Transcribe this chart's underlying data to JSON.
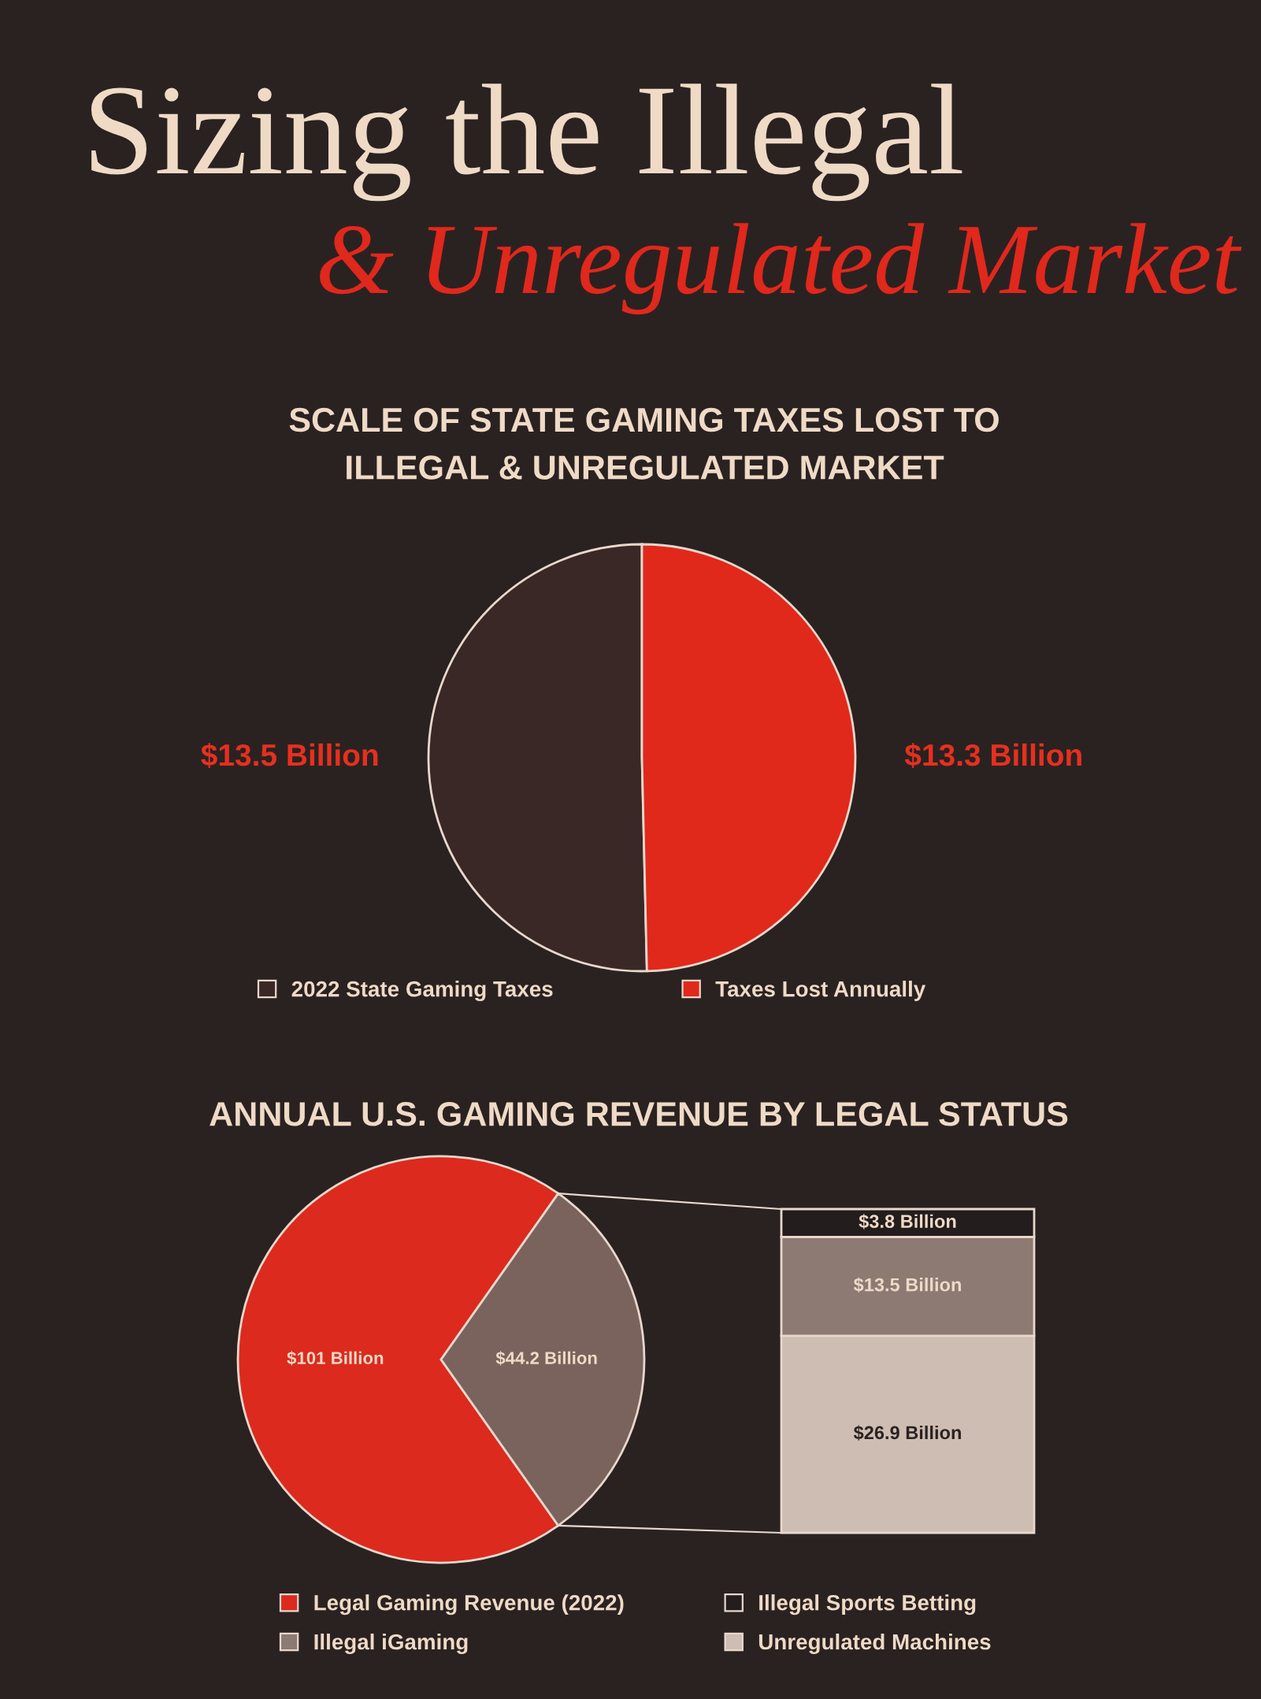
{
  "chart_data": [
    {
      "type": "pie",
      "title": "Sizing the Illegal\n& Unregulated Market",
      "subtitle": "SCALE OF STATE GAMING TAXES LOST TO\nILLEGAL & UNREGULATED MARKET",
      "categories": [
        "2022 State Gaming Taxes",
        "Taxes Lost Annually"
      ],
      "values": [
        13.5,
        13.3
      ],
      "colors": [
        "#3a2826",
        "#e0291b"
      ],
      "value_labels": [
        "$13.5 Billion",
        "$13.3 Billion"
      ],
      "legend": "bottom"
    },
    {
      "type": "pie",
      "title": "ANNUAL U.S. GAMING REVENUE BY LEGAL STATUS",
      "categories": [
        "Legal Gaming Revenue (2022)",
        null
      ],
      "values": [
        101,
        44.2
      ],
      "colors": [
        "#dc2a1e",
        "#7a635d"
      ],
      "value_labels": [
        "$101 Billion",
        "$44.2 Billion"
      ],
      "legend": "bottom"
    },
    {
      "type": "bar",
      "stacked": true,
      "categories": [
        null
      ],
      "series": [
        {
          "name": "Unregulated Machines",
          "color": "#cdbdb3",
          "values": [
            26.9
          ],
          "value_labels": [
            "$26.9 Billion"
          ]
        },
        {
          "name": "Illegal iGaming",
          "color": "#8c7a73",
          "values": [
            13.5
          ],
          "value_labels": [
            "$13.5 Billion"
          ]
        },
        {
          "name": "Illegal Sports Betting",
          "color": "#231d1d",
          "values": [
            3.8
          ],
          "value_labels": [
            "$3.8 Billion"
          ]
        }
      ],
      "legend": "bottom",
      "tick_labels": false
    }
  ]
}
